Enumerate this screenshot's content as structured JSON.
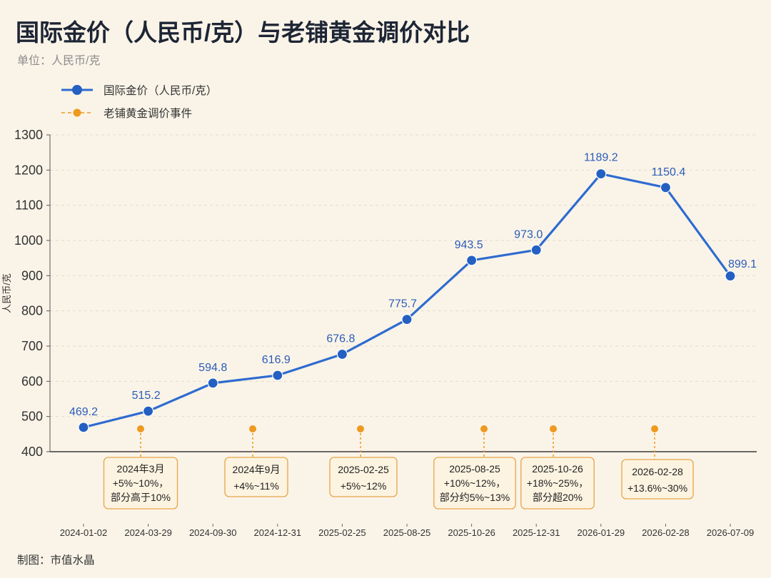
{
  "chart_data": {
    "type": "line",
    "title": "国际金价（人民币/克）与老铺黄金调价对比",
    "subtitle": "单位：人民币/克",
    "xlabel": "",
    "ylabel": "人民币/克",
    "ylim": [
      400,
      1300
    ],
    "yticks": [
      400,
      500,
      600,
      700,
      800,
      900,
      1000,
      1100,
      1200,
      1300
    ],
    "grid": true,
    "legend_position": "top-left",
    "categories": [
      "2024-01-02",
      "2024-03-29",
      "2024-09-30",
      "2024-12-31",
      "2025-02-25",
      "2025-08-25",
      "2025-10-26",
      "2025-12-31",
      "2026-01-29",
      "2026-02-28",
      "2026-07-09"
    ],
    "series": [
      {
        "name": "国际金价（人民币/克）",
        "color": "#2E6BD0",
        "values": [
          469.2,
          515.2,
          594.8,
          616.9,
          676.8,
          775.7,
          943.5,
          973.0,
          1189.2,
          1150.4,
          899.1
        ],
        "data_labels": [
          "469.2",
          "515.2",
          "594.8",
          "616.9",
          "676.8",
          "775.7",
          "943.5",
          "973.0",
          "1189.2",
          "1150.4",
          "899.1"
        ]
      }
    ],
    "events": {
      "name": "老铺黄金调价事件",
      "color": "#EE9A1F",
      "items": [
        {
          "date": "2024年3月",
          "change": "+5%~10%，",
          "note": "部分高于10%"
        },
        {
          "date": "2024年9月",
          "change": "+4%~11%"
        },
        {
          "date": "2025-02-25",
          "change": "+5%~12%"
        },
        {
          "date": "2025-08-25",
          "change": "+10%~12%，",
          "note": "部分约5%~13%"
        },
        {
          "date": "2025-10-26",
          "change": "+18%~25%，",
          "note": "部分超20%"
        },
        {
          "date": "2026-02-28",
          "change": "+13.6%~30%"
        }
      ]
    }
  },
  "footer": "制图：市值水晶"
}
